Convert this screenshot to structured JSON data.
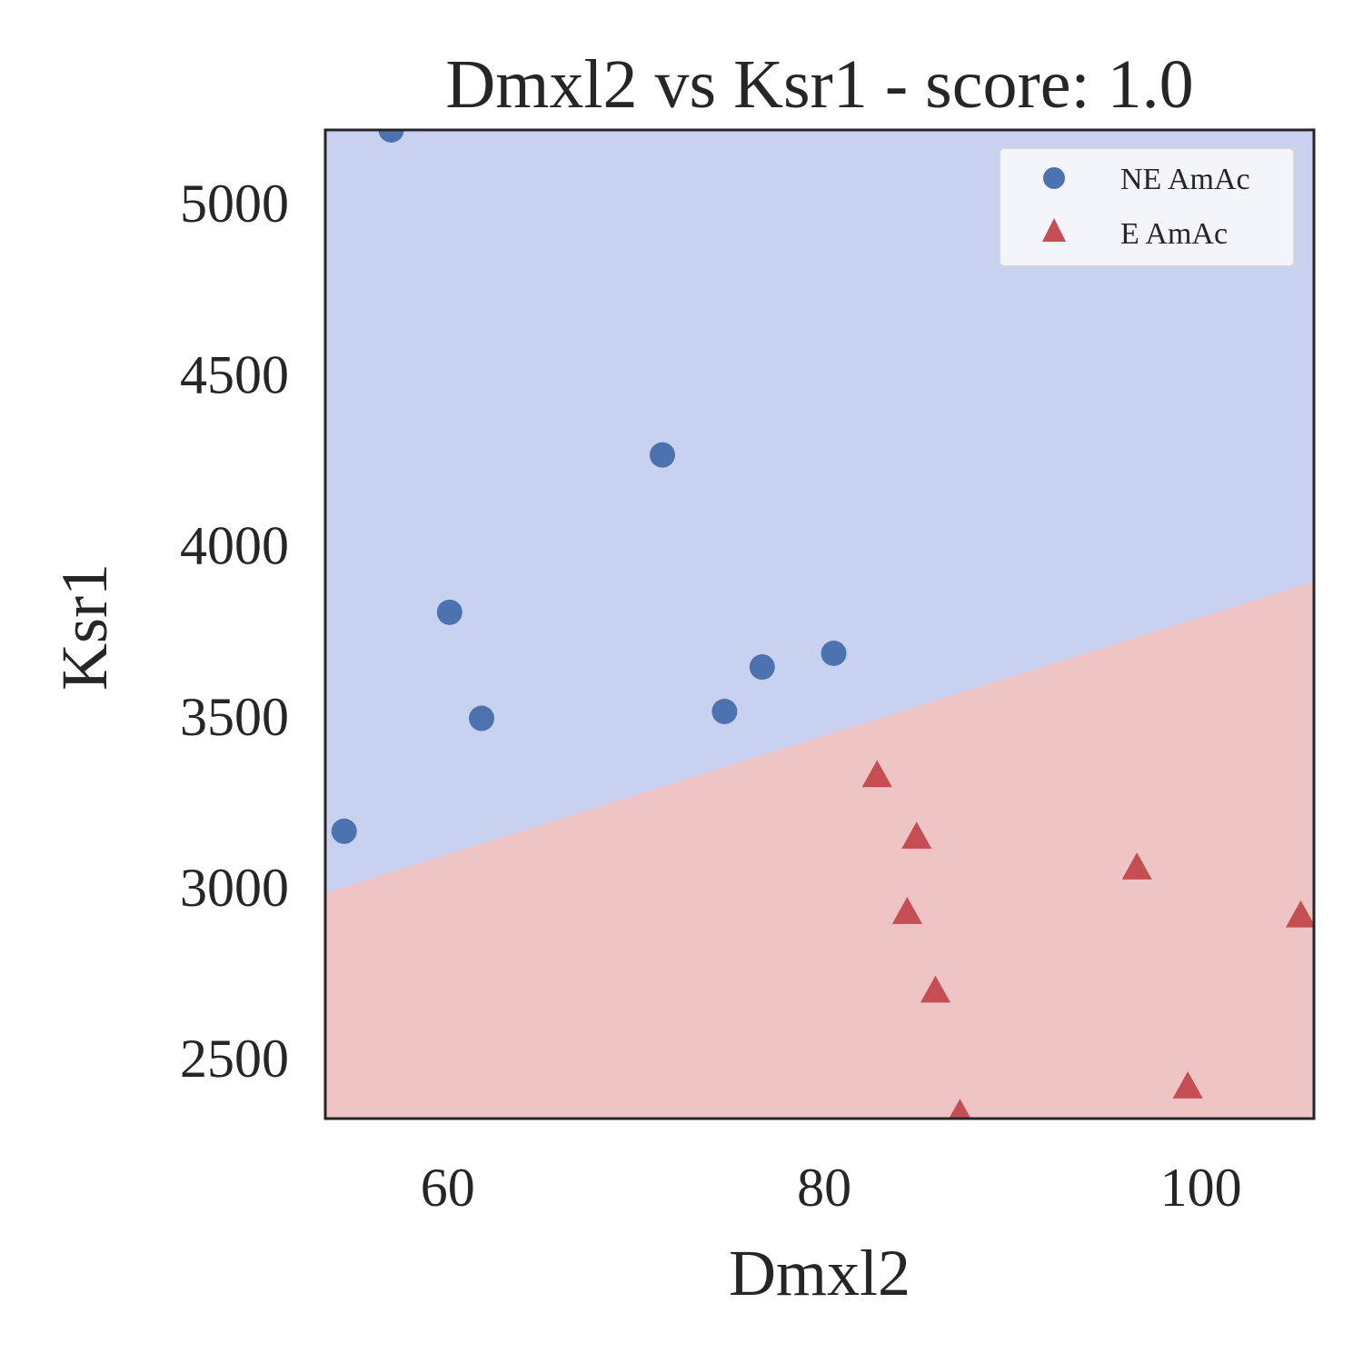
{
  "chart_data": {
    "type": "scatter",
    "title": "Dmxl2 vs Ksr1 - score: 1.0",
    "xlabel": "Dmxl2",
    "ylabel": "Ksr1",
    "xlim": [
      53.5,
      106
    ],
    "ylim": [
      2320,
      5210
    ],
    "x_ticks": [
      60,
      80,
      100
    ],
    "y_ticks": [
      2500,
      3000,
      3500,
      4000,
      4500,
      5000
    ],
    "grid": false,
    "legend_position": "top-right",
    "decision_boundary": {
      "line": [
        [
          53.5,
          2980
        ],
        [
          106,
          3890
        ]
      ],
      "region_above": {
        "class": "NE AmAc",
        "color": "#c9d1f1"
      },
      "region_below": {
        "class": "E AmAc",
        "color": "#efc4c4"
      }
    },
    "series": [
      {
        "name": "NE AmAc",
        "marker": "circle",
        "color": "#4c72b0",
        "points": [
          {
            "x": 57,
            "y": 5210
          },
          {
            "x": 54.5,
            "y": 3160
          },
          {
            "x": 60.1,
            "y": 3800
          },
          {
            "x": 61.8,
            "y": 3490
          },
          {
            "x": 71.4,
            "y": 4260
          },
          {
            "x": 74.7,
            "y": 3510
          },
          {
            "x": 76.7,
            "y": 3640
          },
          {
            "x": 80.5,
            "y": 3680
          }
        ]
      },
      {
        "name": "E AmAc",
        "marker": "triangle",
        "color": "#c44e52",
        "points": [
          {
            "x": 82.8,
            "y": 3320
          },
          {
            "x": 84.9,
            "y": 3140
          },
          {
            "x": 84.4,
            "y": 2920
          },
          {
            "x": 85.9,
            "y": 2690
          },
          {
            "x": 87.2,
            "y": 2330
          },
          {
            "x": 96.6,
            "y": 3050
          },
          {
            "x": 99.3,
            "y": 2410
          },
          {
            "x": 105.3,
            "y": 2910
          }
        ]
      }
    ]
  }
}
